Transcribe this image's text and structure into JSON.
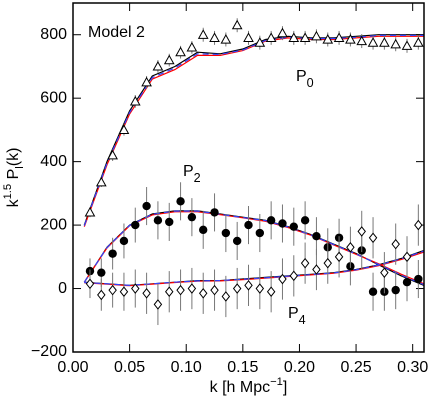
{
  "chart_data": {
    "type": "scatter",
    "x_label_parts": [
      {
        "text": "k [h Mpc"
      },
      {
        "text": "−1",
        "shift": "sup"
      },
      {
        "text": "]"
      }
    ],
    "y_label_parts": [
      {
        "text": "k"
      },
      {
        "text": "1.5",
        "shift": "sup"
      },
      {
        "text": " P"
      },
      {
        "text": "l",
        "shift": "sub"
      },
      {
        "text": "(k)"
      }
    ],
    "annotations": [
      {
        "parts": [
          {
            "text": "Model 2"
          }
        ]
      },
      {
        "parts": [
          {
            "text": "P"
          },
          {
            "text": "0",
            "shift": "sub"
          }
        ]
      },
      {
        "parts": [
          {
            "text": "P"
          },
          {
            "text": "2",
            "shift": "sub"
          }
        ]
      },
      {
        "parts": [
          {
            "text": "P"
          },
          {
            "text": "4",
            "shift": "sub"
          }
        ]
      }
    ],
    "xlim": [
      0,
      0.31
    ],
    "ylim": [
      -200,
      900
    ],
    "xticks": [
      {
        "value": 0,
        "label": "0.00"
      },
      {
        "value": 0.05,
        "label": "0.05"
      },
      {
        "value": 0.1,
        "label": "0.10"
      },
      {
        "value": 0.15,
        "label": "0.15"
      },
      {
        "value": 0.2,
        "label": "0.20"
      },
      {
        "value": 0.25,
        "label": "0.25"
      },
      {
        "value": 0.3,
        "label": "0.30"
      }
    ],
    "yticks": [
      {
        "value": -200,
        "label": "−200"
      },
      0,
      200,
      400,
      600,
      800
    ],
    "x": [
      0.015,
      0.025,
      0.035,
      0.045,
      0.055,
      0.065,
      0.075,
      0.085,
      0.095,
      0.105,
      0.115,
      0.125,
      0.135,
      0.145,
      0.155,
      0.165,
      0.175,
      0.185,
      0.195,
      0.205,
      0.215,
      0.225,
      0.235,
      0.245,
      0.255,
      0.265,
      0.275,
      0.285,
      0.295,
      0.305
    ],
    "series": [
      {
        "marker": "triangle",
        "color": "#000000",
        "values": [
          240,
          335,
          420,
          500,
          590,
          650,
          700,
          720,
          745,
          760,
          800,
          790,
          785,
          830,
          790,
          775,
          790,
          805,
          790,
          790,
          795,
          785,
          790,
          785,
          780,
          775,
          775,
          770,
          765,
          775
        ],
        "errors": [
          15,
          15,
          18,
          18,
          20,
          20,
          20,
          20,
          20,
          20,
          22,
          22,
          22,
          22,
          22,
          22,
          22,
          22,
          22,
          22,
          22,
          22,
          22,
          22,
          22,
          22,
          22,
          22,
          22,
          22
        ]
      },
      {
        "marker": "circle",
        "color": "#000000",
        "values": [
          55,
          50,
          110,
          150,
          200,
          260,
          215,
          210,
          275,
          225,
          185,
          240,
          175,
          150,
          200,
          175,
          215,
          205,
          195,
          215,
          165,
          130,
          160,
          70,
          120,
          -10,
          -10,
          -5,
          20,
          30
        ],
        "errors": [
          40,
          45,
          50,
          55,
          55,
          60,
          60,
          60,
          60,
          60,
          60,
          60,
          60,
          60,
          60,
          60,
          60,
          60,
          60,
          60,
          60,
          60,
          60,
          60,
          60,
          60,
          60,
          60,
          60,
          60
        ]
      },
      {
        "marker": "diamond",
        "color": "#000000",
        "values": [
          15,
          -20,
          -5,
          -10,
          0,
          -15,
          -50,
          -10,
          -5,
          0,
          -15,
          -5,
          -25,
          0,
          10,
          0,
          -10,
          30,
          40,
          80,
          60,
          80,
          100,
          130,
          180,
          160,
          50,
          140,
          100,
          200
        ],
        "errors": [
          45,
          50,
          55,
          60,
          60,
          65,
          65,
          65,
          65,
          65,
          65,
          65,
          65,
          65,
          65,
          65,
          65,
          65,
          65,
          65,
          65,
          65,
          65,
          65,
          65,
          65,
          65,
          65,
          65,
          65
        ]
      }
    ],
    "model_x": [
      0.01,
      0.03,
      0.05,
      0.07,
      0.09,
      0.11,
      0.13,
      0.15,
      0.17,
      0.19,
      0.21,
      0.23,
      0.25,
      0.27,
      0.29,
      0.31
    ],
    "models": [
      {
        "color": "#000000",
        "dashed": false,
        "curves": [
          [
            200,
            400,
            560,
            670,
            700,
            745,
            740,
            755,
            785,
            795,
            790,
            790,
            795,
            800,
            800,
            800
          ],
          [
            20,
            130,
            200,
            235,
            245,
            245,
            235,
            225,
            215,
            195,
            170,
            140,
            110,
            75,
            40,
            10
          ],
          [
            20,
            15,
            10,
            15,
            20,
            25,
            25,
            30,
            35,
            40,
            45,
            50,
            60,
            75,
            95,
            120
          ]
        ]
      },
      {
        "color": "#ff0000",
        "dashed": false,
        "curves": [
          [
            195,
            390,
            550,
            660,
            690,
            735,
            735,
            750,
            780,
            790,
            785,
            785,
            790,
            795,
            795,
            795
          ],
          [
            20,
            128,
            198,
            232,
            242,
            242,
            233,
            223,
            212,
            192,
            168,
            138,
            108,
            78,
            45,
            15
          ],
          [
            18,
            14,
            9,
            14,
            19,
            23,
            24,
            28,
            33,
            38,
            43,
            48,
            58,
            72,
            92,
            115
          ]
        ]
      },
      {
        "color": "#3344ff",
        "dashed": true,
        "curves": [
          [
            198,
            395,
            555,
            665,
            695,
            740,
            738,
            752,
            782,
            792,
            788,
            788,
            792,
            798,
            798,
            798
          ],
          [
            20,
            129,
            199,
            234,
            244,
            244,
            234,
            224,
            214,
            194,
            169,
            139,
            109,
            76,
            42,
            12
          ],
          [
            19,
            15,
            10,
            15,
            20,
            24,
            25,
            29,
            34,
            39,
            44,
            49,
            59,
            74,
            94,
            118
          ]
        ]
      }
    ]
  }
}
